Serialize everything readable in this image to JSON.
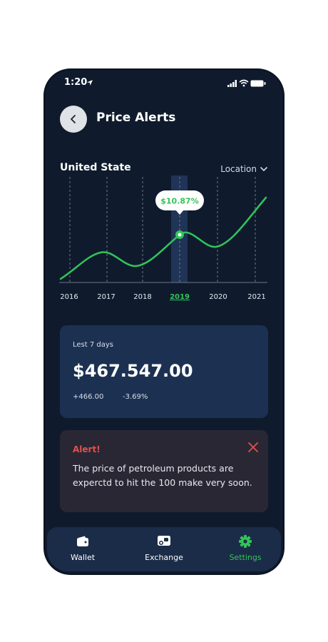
{
  "status": {
    "time": "1:20"
  },
  "header": {
    "title": "Price Alerts"
  },
  "region": {
    "name": "United State",
    "location_label": "Location"
  },
  "chart_data": {
    "type": "line",
    "categories": [
      "2016",
      "2017",
      "2018",
      "2019",
      "2020",
      "2021"
    ],
    "selected": "2019",
    "tooltip": "$10.87%",
    "colors": {
      "line": "#33c45a",
      "highlight": "#1f3456"
    }
  },
  "summary": {
    "period": "Lest 7 days",
    "amount": "$467.547.00",
    "change_abs": "+466.00",
    "change_pct": "-3.69%"
  },
  "alert": {
    "title": "Alert!",
    "message": "The price of petroleum products are experctd to hit the 100 make very soon."
  },
  "tabs": [
    {
      "label": "Wallet",
      "icon": "wallet-icon"
    },
    {
      "label": "Exchange",
      "icon": "exchange-icon"
    },
    {
      "label": "Settings",
      "icon": "gear-icon"
    }
  ]
}
